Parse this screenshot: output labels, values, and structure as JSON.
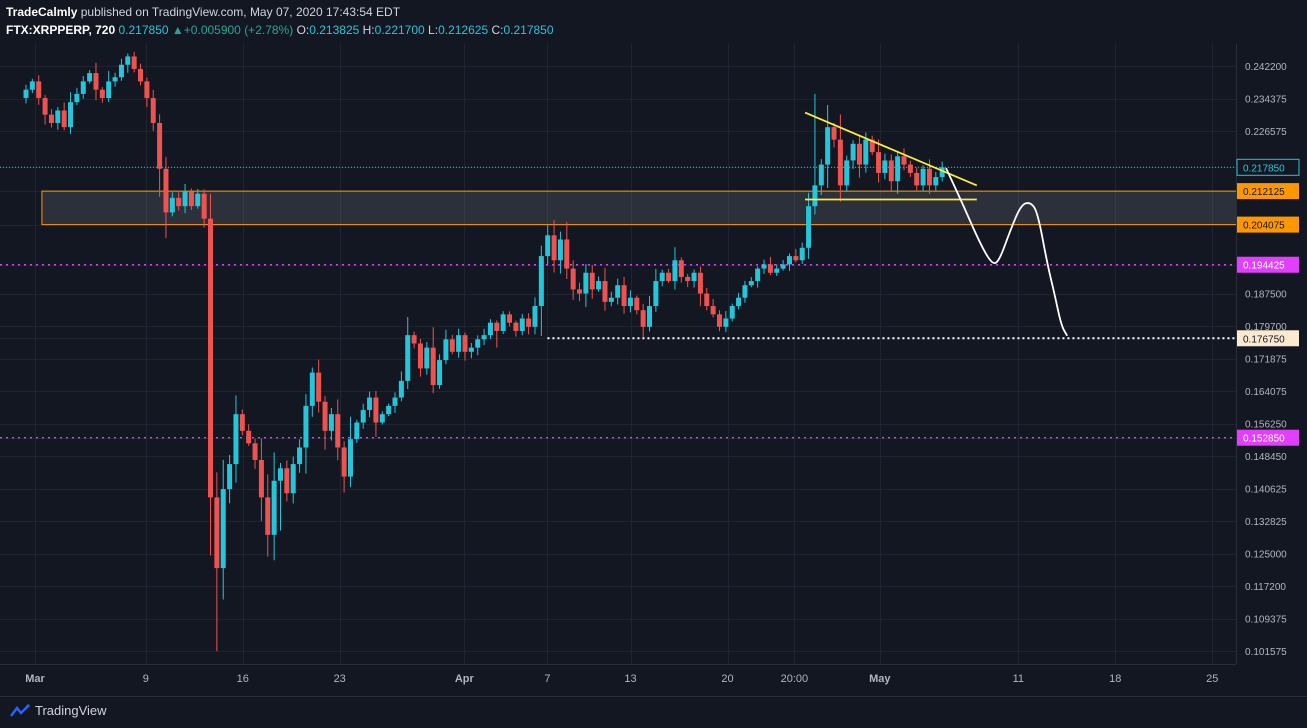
{
  "header": {
    "author": "TradeCalmly",
    "published_text": "published on TradingView.com, May 07, 2020 17:43:54 EDT",
    "symbol": "FTX:XRPPERP, 720",
    "last": "0.217850",
    "change": "+0.005900 (+2.78%)",
    "o_label": "O:",
    "o": "0.213825",
    "h_label": "H:",
    "h": "0.221700",
    "l_label": "L:",
    "l": "0.212625",
    "c_label": "C:",
    "c": "0.217850"
  },
  "footer": {
    "brand": "TradingView"
  },
  "colors": {
    "background": "#131722",
    "up": "#26c6da",
    "down": "#ef5350",
    "triangle": "#ffeb3b",
    "zone": "#ff9800",
    "magenta": "#e040fb",
    "current": "#26c6da"
  },
  "chart_data": {
    "type": "candlestick",
    "symbol": "FTX:XRPPERP",
    "interval": "720",
    "y_ticks": [
      "0.242200",
      "0.234375",
      "0.226575",
      "0.217850",
      "0.212125",
      "0.204075",
      "0.194425",
      "0.187500",
      "0.179700",
      "0.176750",
      "0.171875",
      "0.164075",
      "0.156250",
      "0.152850",
      "0.148450",
      "0.140625",
      "0.132825",
      "0.125000",
      "0.117200",
      "0.109375",
      "0.101575"
    ],
    "plain_ticks": [
      0.2422,
      0.234375,
      0.226575,
      0.1875,
      0.1797,
      0.171875,
      0.164075,
      0.15625,
      0.14845,
      0.140625,
      0.132825,
      0.125,
      0.1172,
      0.109375,
      0.101575
    ],
    "price_labels": [
      {
        "text": "0.217850",
        "value": 0.21785,
        "style": "current"
      },
      {
        "text": "0.212125",
        "value": 0.212125,
        "style": "zone"
      },
      {
        "text": "0.204075",
        "value": 0.204075,
        "style": "zone"
      },
      {
        "text": "0.194425",
        "value": 0.194425,
        "style": "magenta"
      },
      {
        "text": "0.176750",
        "value": 0.17675,
        "style": "white"
      },
      {
        "text": "0.152850",
        "value": 0.15285,
        "style": "magenta"
      }
    ],
    "x_ticks": [
      {
        "label": "Mar",
        "day": 1,
        "bold": true
      },
      {
        "label": "9",
        "day": 9
      },
      {
        "label": "16",
        "day": 16
      },
      {
        "label": "23",
        "day": 23
      },
      {
        "label": "Apr",
        "day": 32,
        "bold": true
      },
      {
        "label": "7",
        "day": 38
      },
      {
        "label": "13",
        "day": 44
      },
      {
        "label": "20",
        "day": 51
      },
      {
        "label": "20:00",
        "day": 55.83
      },
      {
        "label": "May",
        "day": 62,
        "bold": true
      },
      {
        "label": "11",
        "day": 72
      },
      {
        "label": "18",
        "day": 79
      },
      {
        "label": "25",
        "day": 86
      }
    ],
    "closes": [
      0.2365,
      0.2385,
      0.2345,
      0.2305,
      0.2285,
      0.2315,
      0.2275,
      0.2335,
      0.2355,
      0.2385,
      0.2405,
      0.2365,
      0.2345,
      0.2385,
      0.2395,
      0.2425,
      0.2445,
      0.2415,
      0.2385,
      0.2345,
      0.2285,
      0.2175,
      0.207,
      0.2105,
      0.2085,
      0.212,
      0.2085,
      0.2115,
      0.2055,
      0.1385,
      0.1215,
      0.1405,
      0.1465,
      0.1585,
      0.1545,
      0.1515,
      0.1475,
      0.1385,
      0.1295,
      0.1425,
      0.1455,
      0.1395,
      0.1465,
      0.1505,
      0.1605,
      0.1685,
      0.1615,
      0.1545,
      0.1585,
      0.1505,
      0.1435,
      0.1525,
      0.1565,
      0.1595,
      0.1625,
      0.1565,
      0.1585,
      0.1605,
      0.1625,
      0.1665,
      0.1775,
      0.1755,
      0.1695,
      0.1745,
      0.1655,
      0.1715,
      0.1765,
      0.1735,
      0.1775,
      0.1735,
      0.1745,
      0.1765,
      0.1775,
      0.1805,
      0.1785,
      0.1825,
      0.1805,
      0.1785,
      0.1815,
      0.1795,
      0.1845,
      0.1965,
      0.2015,
      0.1955,
      0.2005,
      0.1935,
      0.1885,
      0.1875,
      0.1925,
      0.1885,
      0.1905,
      0.1855,
      0.1865,
      0.1895,
      0.1845,
      0.1865,
      0.1835,
      0.1795,
      0.1845,
      0.1905,
      0.1925,
      0.1905,
      0.1955,
      0.1915,
      0.1905,
      0.1925,
      0.1875,
      0.1845,
      0.1825,
      0.1795,
      0.1815,
      0.1845,
      0.1865,
      0.1895,
      0.1905,
      0.1935,
      0.1945,
      0.1925,
      0.1935,
      0.1945,
      0.1965,
      0.1955,
      0.1985,
      0.2085,
      0.2135,
      0.2185,
      0.2275,
      0.2245,
      0.2135,
      0.2195,
      0.2235,
      0.2185,
      0.2245,
      0.2215,
      0.2165,
      0.2195,
      0.2145,
      0.2205,
      0.2185,
      0.2165,
      0.2135,
      0.2175,
      0.2135,
      0.2155,
      0.21785
    ],
    "last_close": 0.21785,
    "value_range": [
      0.0985,
      0.2487
    ],
    "annotations": {
      "zone": {
        "from_day": 1.5,
        "to_day": 89,
        "low": 0.204075,
        "high": 0.212125
      },
      "triangle_upper": {
        "from": [
          56.6,
          0.231
        ],
        "to": [
          69,
          0.2135
        ]
      },
      "triangle_lower": {
        "from": [
          56.6,
          0.2101
        ],
        "to": [
          69,
          0.2101
        ]
      },
      "hline_176750": {
        "from_day": 38,
        "value": 0.17675
      },
      "projection": [
        [
          66.8,
          0.2175
        ],
        [
          68,
          0.2089
        ],
        [
          69.2,
          0.1998
        ],
        [
          70.1,
          0.1945
        ],
        [
          70.6,
          0.1952
        ],
        [
          71.4,
          0.2025
        ],
        [
          72.2,
          0.2089
        ],
        [
          72.9,
          0.2095
        ],
        [
          73.4,
          0.2069
        ],
        [
          74.1,
          0.1945
        ],
        [
          74.6,
          0.1876
        ],
        [
          75.1,
          0.1798
        ],
        [
          75.5,
          0.1775
        ]
      ]
    }
  }
}
